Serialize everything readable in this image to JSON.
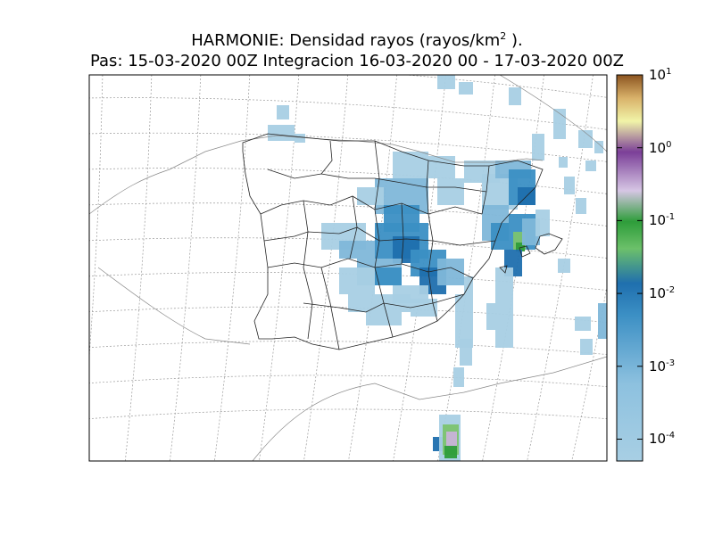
{
  "title": {
    "line1_prefix": "HARMONIE: Densidad rayos  (rayos/km",
    "line1_sup": "2",
    "line1_suffix": " ).",
    "line2": "Pas: 15-03-2020 00Z Integracion 16-03-2020 00 - 17-03-2020 00Z"
  },
  "colorbar": {
    "scale": "log",
    "ticks": [
      {
        "base": "10",
        "exp": "1"
      },
      {
        "base": "10",
        "exp": "0"
      },
      {
        "base": "10",
        "exp": "-1"
      },
      {
        "base": "10",
        "exp": "-2"
      },
      {
        "base": "10",
        "exp": "-3"
      },
      {
        "base": "10",
        "exp": "-4"
      }
    ],
    "colors": [
      "#a8cfe4",
      "#7fb7d9",
      "#3b8fc4",
      "#1f6fae",
      "#6cc06a",
      "#2e9d3a",
      "#b9a0d0",
      "#7b3f98",
      "#eef3a0",
      "#c48a3e",
      "#8c5420"
    ]
  },
  "map": {
    "graticule": "dashed",
    "features": [
      "coastline",
      "province-borders"
    ]
  }
}
